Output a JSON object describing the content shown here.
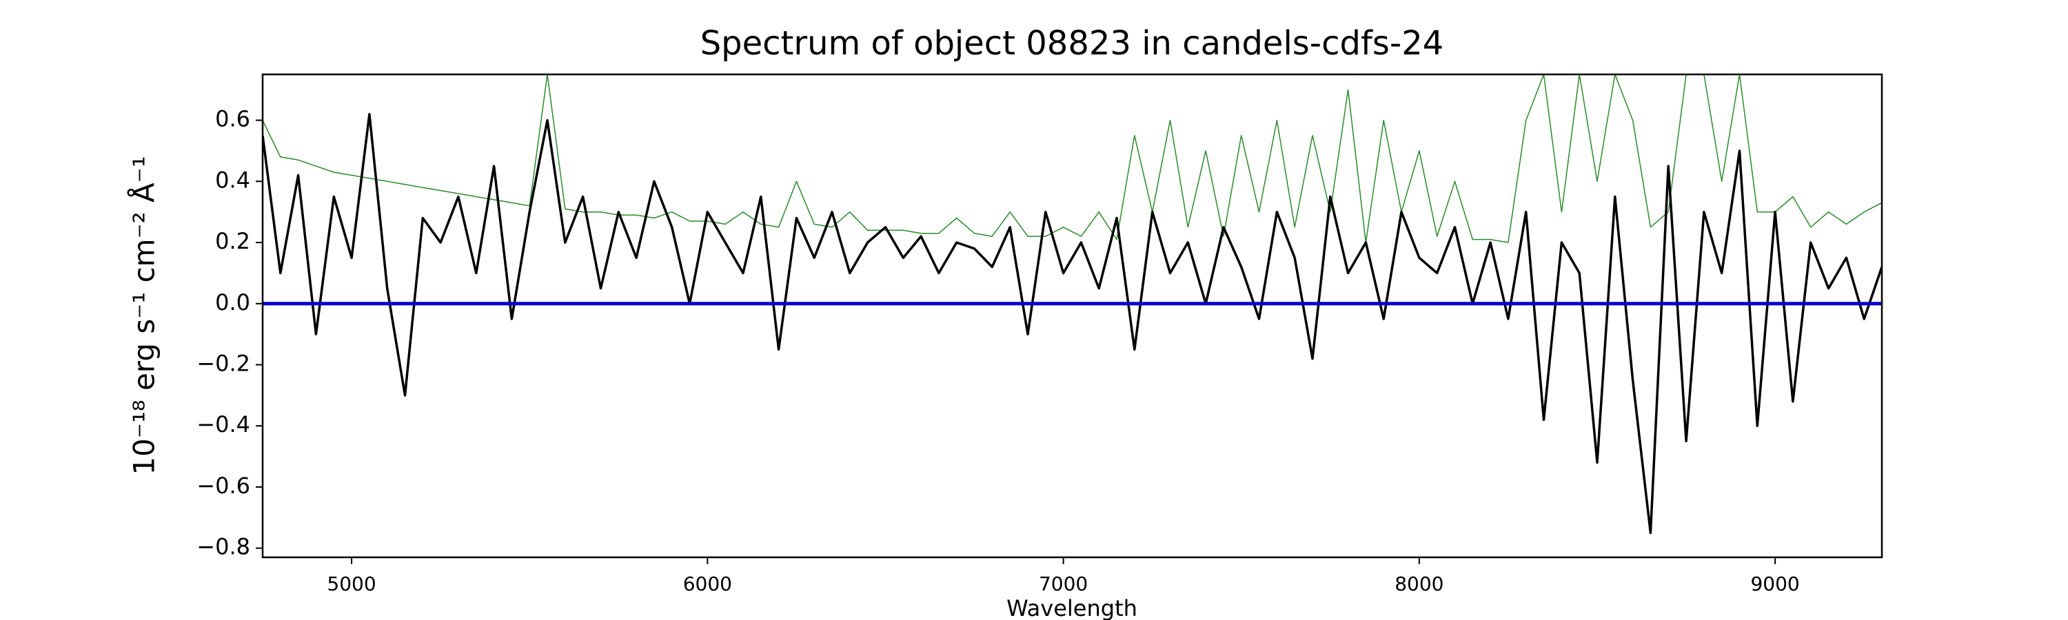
{
  "chart_data": {
    "type": "line",
    "title": "Spectrum of object 08823 in candels-cdfs-24",
    "xlabel": "Wavelength",
    "ylabel": "10⁻¹⁸ erg s⁻¹ cm⁻² Å⁻¹",
    "x": [
      4750,
      4800,
      4850,
      4900,
      4950,
      5000,
      5050,
      5100,
      5150,
      5200,
      5250,
      5300,
      5350,
      5400,
      5450,
      5500,
      5550,
      5600,
      5650,
      5700,
      5750,
      5800,
      5850,
      5900,
      5950,
      6000,
      6050,
      6100,
      6150,
      6200,
      6250,
      6300,
      6350,
      6400,
      6450,
      6500,
      6550,
      6600,
      6650,
      6700,
      6750,
      6800,
      6850,
      6900,
      6950,
      7000,
      7050,
      7100,
      7150,
      7200,
      7250,
      7300,
      7350,
      7400,
      7450,
      7500,
      7550,
      7600,
      7650,
      7700,
      7750,
      7800,
      7850,
      7900,
      7950,
      8000,
      8050,
      8100,
      8150,
      8200,
      8250,
      8300,
      8350,
      8400,
      8450,
      8500,
      8550,
      8600,
      8650,
      8700,
      8750,
      8800,
      8850,
      8900,
      8950,
      9000,
      9050,
      9100,
      9150,
      9200,
      9250,
      9300
    ],
    "series": [
      {
        "color": "#2a8a2a",
        "values": [
          0.6,
          0.48,
          0.47,
          0.45,
          0.43,
          0.42,
          0.41,
          0.4,
          0.39,
          0.38,
          0.37,
          0.36,
          0.35,
          0.34,
          0.33,
          0.32,
          0.75,
          0.31,
          0.3,
          0.3,
          0.29,
          0.29,
          0.28,
          0.3,
          0.27,
          0.27,
          0.26,
          0.3,
          0.26,
          0.25,
          0.4,
          0.26,
          0.25,
          0.3,
          0.24,
          0.24,
          0.24,
          0.23,
          0.23,
          0.28,
          0.23,
          0.22,
          0.3,
          0.22,
          0.22,
          0.25,
          0.22,
          0.3,
          0.21,
          0.55,
          0.3,
          0.6,
          0.25,
          0.5,
          0.22,
          0.55,
          0.3,
          0.6,
          0.25,
          0.55,
          0.3,
          0.7,
          0.2,
          0.6,
          0.3,
          0.5,
          0.22,
          0.4,
          0.21,
          0.21,
          0.2,
          0.6,
          0.75,
          0.3,
          0.75,
          0.4,
          0.75,
          0.6,
          0.25,
          0.3,
          0.75,
          0.75,
          0.4,
          0.75,
          0.3,
          0.3,
          0.35,
          0.25,
          0.3,
          0.26,
          0.3,
          0.33
        ]
      },
      {
        "color": "#000000",
        "values": [
          0.55,
          0.1,
          0.42,
          -0.1,
          0.35,
          0.15,
          0.62,
          0.05,
          -0.3,
          0.28,
          0.2,
          0.35,
          0.1,
          0.45,
          -0.05,
          0.3,
          0.6,
          0.2,
          0.35,
          0.05,
          0.3,
          0.15,
          0.4,
          0.25,
          0.0,
          0.3,
          0.2,
          0.1,
          0.35,
          -0.15,
          0.28,
          0.15,
          0.3,
          0.1,
          0.2,
          0.25,
          0.15,
          0.22,
          0.1,
          0.2,
          0.18,
          0.12,
          0.25,
          -0.1,
          0.3,
          0.1,
          0.2,
          0.05,
          0.28,
          -0.15,
          0.3,
          0.1,
          0.2,
          0.0,
          0.25,
          0.12,
          -0.05,
          0.3,
          0.15,
          -0.18,
          0.35,
          0.1,
          0.2,
          -0.05,
          0.3,
          0.15,
          0.1,
          0.25,
          0.0,
          0.2,
          -0.05,
          0.3,
          -0.38,
          0.2,
          0.1,
          -0.52,
          0.35,
          -0.25,
          -0.75,
          0.45,
          -0.45,
          0.3,
          0.1,
          0.5,
          -0.4,
          0.3,
          -0.32,
          0.2,
          0.05,
          0.15,
          -0.05,
          0.12
        ]
      },
      {
        "color": "#0000cc",
        "values": [
          0,
          0,
          0,
          0,
          0,
          0,
          0,
          0,
          0,
          0,
          0,
          0,
          0,
          0,
          0,
          0,
          0,
          0,
          0,
          0,
          0,
          0,
          0,
          0,
          0,
          0,
          0,
          0,
          0,
          0,
          0,
          0,
          0,
          0,
          0,
          0,
          0,
          0,
          0,
          0,
          0,
          0,
          0,
          0,
          0,
          0,
          0,
          0,
          0,
          0,
          0,
          0,
          0,
          0,
          0,
          0,
          0,
          0,
          0,
          0,
          0,
          0,
          0,
          0,
          0,
          0,
          0,
          0,
          0,
          0,
          0,
          0,
          0,
          0,
          0,
          0,
          0,
          0,
          0,
          0,
          0,
          0,
          0,
          0,
          0,
          0,
          0,
          0,
          0,
          0,
          0,
          0
        ]
      }
    ],
    "xlim": [
      4750,
      9300
    ],
    "ylim": [
      -0.83,
      0.75
    ],
    "xticks": [
      5000,
      6000,
      7000,
      8000,
      9000
    ],
    "yticks": [
      {
        "value": -0.8,
        "label": "−0.8"
      },
      {
        "value": -0.6,
        "label": "−0.6"
      },
      {
        "value": -0.4,
        "label": "−0.4"
      },
      {
        "value": -0.2,
        "label": "−0.2"
      },
      {
        "value": 0,
        "label": "0.0"
      },
      0.2,
      0.4,
      0.6
    ]
  }
}
